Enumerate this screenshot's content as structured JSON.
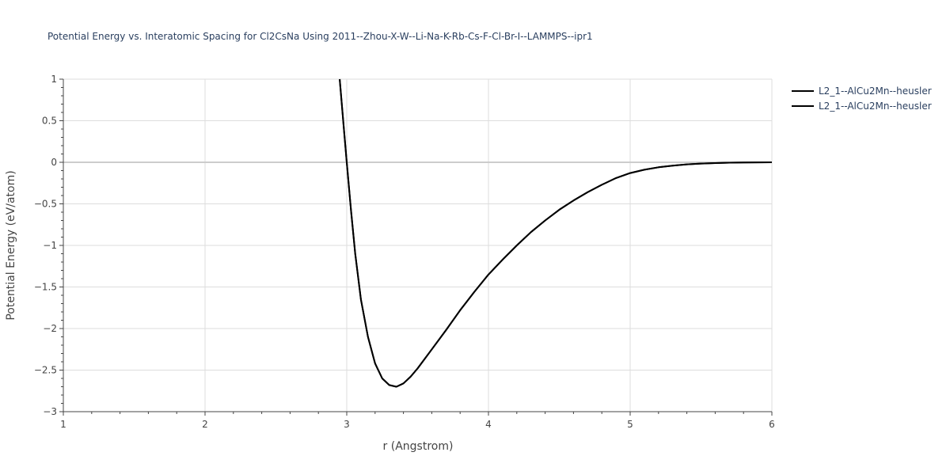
{
  "chart_data": {
    "type": "line",
    "title": "Potential Energy vs. Interatomic Spacing for Cl2CsNa Using 2011--Zhou-X-W--Li-Na-K-Rb-Cs-F-Cl-Br-I--LAMMPS--ipr1",
    "xlabel": "r (Angstrom)",
    "ylabel": "Potential Energy (eV/atom)",
    "xlim": [
      1,
      6
    ],
    "ylim": [
      -3,
      1
    ],
    "x_ticks": [
      "1",
      "2",
      "3",
      "4",
      "5",
      "6"
    ],
    "y_ticks": [
      "1",
      "0.5",
      "0",
      "−0.5",
      "−1",
      "−1.5",
      "−2",
      "−2.5",
      "−3"
    ],
    "grid": true,
    "legend_position": "top-right",
    "series": [
      {
        "name": "L2_1--AlCu2Mn--heusler",
        "color": "#000000",
        "x": [
          2.95,
          2.98,
          3.0,
          3.03,
          3.06,
          3.1,
          3.15,
          3.2,
          3.25,
          3.3,
          3.35,
          3.4,
          3.45,
          3.5,
          3.6,
          3.7,
          3.8,
          3.9,
          4.0,
          4.1,
          4.2,
          4.3,
          4.4,
          4.5,
          4.6,
          4.7,
          4.8,
          4.9,
          5.0,
          5.1,
          5.2,
          5.3,
          5.4,
          5.5,
          5.6,
          5.7,
          5.8,
          5.9,
          6.0
        ],
        "y": [
          1.0,
          0.4,
          0.0,
          -0.58,
          -1.1,
          -1.65,
          -2.1,
          -2.42,
          -2.6,
          -2.68,
          -2.7,
          -2.66,
          -2.58,
          -2.48,
          -2.25,
          -2.02,
          -1.78,
          -1.56,
          -1.35,
          -1.17,
          -1.0,
          -0.84,
          -0.7,
          -0.57,
          -0.46,
          -0.36,
          -0.27,
          -0.19,
          -0.13,
          -0.09,
          -0.06,
          -0.04,
          -0.025,
          -0.015,
          -0.01,
          -0.005,
          -0.002,
          -0.001,
          0.0
        ]
      },
      {
        "name": "L2_1--AlCu2Mn--heusler",
        "color": "#000000",
        "x": [
          2.95,
          2.98,
          3.0,
          3.03,
          3.06,
          3.1,
          3.15,
          3.2,
          3.25,
          3.3,
          3.35,
          3.4,
          3.45,
          3.5,
          3.6,
          3.7,
          3.8,
          3.9,
          4.0,
          4.1,
          4.2,
          4.3,
          4.4,
          4.5,
          4.6,
          4.7,
          4.8,
          4.9,
          5.0,
          5.1,
          5.2,
          5.3,
          5.4,
          5.5,
          5.6,
          5.7,
          5.8,
          5.9,
          6.0
        ],
        "y": [
          1.0,
          0.4,
          0.0,
          -0.58,
          -1.1,
          -1.65,
          -2.1,
          -2.42,
          -2.6,
          -2.68,
          -2.7,
          -2.66,
          -2.58,
          -2.48,
          -2.25,
          -2.02,
          -1.78,
          -1.56,
          -1.35,
          -1.17,
          -1.0,
          -0.84,
          -0.7,
          -0.57,
          -0.46,
          -0.36,
          -0.27,
          -0.19,
          -0.13,
          -0.09,
          -0.06,
          -0.04,
          -0.025,
          -0.015,
          -0.01,
          -0.005,
          -0.002,
          -0.001,
          0.0
        ]
      }
    ]
  }
}
